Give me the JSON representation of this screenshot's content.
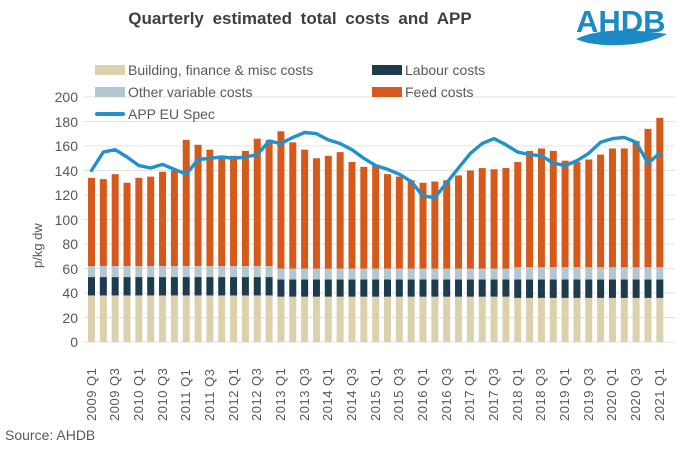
{
  "title": "Quarterly estimated total costs and APP",
  "logo_text": "AHDB",
  "source": "Source: AHDB",
  "colors": {
    "building": "#dbd2ad",
    "labour": "#1d3d4e",
    "other_variable": "#b3c7d1",
    "feed": "#d4591a",
    "app_line": "#2191ce",
    "logo_blue": "#1b8ac6",
    "gridline": "#e3e3e3",
    "axis_text": "#595959",
    "title_text": "#3f3f3f"
  },
  "legend": {
    "items": [
      {
        "label": "Building, finance & misc costs",
        "color": "#dbd2ad",
        "type": "swatch"
      },
      {
        "label": "Labour costs",
        "color": "#1d3d4e",
        "type": "swatch"
      },
      {
        "label": "Other variable costs",
        "color": "#b3c7d1",
        "type": "swatch"
      },
      {
        "label": "Feed costs",
        "color": "#d4591a",
        "type": "swatch"
      },
      {
        "label": "APP EU Spec",
        "color": "#2191ce",
        "type": "line"
      }
    ]
  },
  "chart_data": {
    "type": "bar",
    "subtype": "stacked-bar-with-line",
    "title": "Quarterly estimated total costs and APP",
    "xlabel": "",
    "ylabel": "p/kg dw",
    "ylim": [
      0,
      200
    ],
    "ytick_step": 20,
    "grid": "horizontal",
    "legend_position": "top",
    "x_tick_every": 2,
    "categories": [
      "2009 Q1",
      "2009 Q2",
      "2009 Q3",
      "2009 Q4",
      "2010 Q1",
      "2010 Q2",
      "2010 Q3",
      "2010 Q4",
      "2011 Q1",
      "2011 Q2",
      "2011 Q3",
      "2011 Q4",
      "2012 Q1",
      "2012 Q2",
      "2012 Q3",
      "2012 Q4",
      "2013 Q1",
      "2013 Q2",
      "2013 Q3",
      "2013 Q4",
      "2014 Q1",
      "2014 Q2",
      "2014 Q3",
      "2014 Q4",
      "2015 Q1",
      "2015 Q2",
      "2015 Q3",
      "2015 Q4",
      "2016 Q1",
      "2016 Q2",
      "2016 Q3",
      "2016 Q4",
      "2017 Q1",
      "2017 Q2",
      "2017 Q3",
      "2017 Q4",
      "2018 Q1",
      "2018 Q2",
      "2018 Q3",
      "2018 Q4",
      "2019 Q1",
      "2019 Q2",
      "2019 Q3",
      "2019 Q4",
      "2020 Q1",
      "2020 Q2",
      "2020 Q3",
      "2020 Q4",
      "2021 Q1"
    ],
    "series": [
      {
        "name": "Building, finance & misc costs",
        "color": "#dbd2ad",
        "values": [
          38,
          38,
          38,
          38,
          38,
          38,
          38,
          38,
          38,
          38,
          38,
          38,
          38,
          38,
          38,
          38,
          37,
          37,
          37,
          37,
          37,
          37,
          37,
          37,
          37,
          37,
          37,
          37,
          37,
          37,
          37,
          37,
          37,
          37,
          37,
          37,
          36,
          36,
          36,
          36,
          36,
          36,
          36,
          36,
          36,
          36,
          36,
          36,
          36
        ]
      },
      {
        "name": "Labour costs",
        "color": "#1d3d4e",
        "values": [
          15,
          15,
          15,
          15,
          15,
          15,
          15,
          15,
          15,
          15,
          15,
          15,
          15,
          15,
          15,
          15,
          14,
          14,
          14,
          14,
          14,
          14,
          14,
          14,
          14,
          14,
          14,
          14,
          14,
          14,
          14,
          14,
          14,
          14,
          14,
          14,
          15,
          15,
          15,
          15,
          15,
          15,
          15,
          15,
          15,
          15,
          15,
          15,
          15
        ]
      },
      {
        "name": "Other variable costs",
        "color": "#b3c7d1",
        "values": [
          9,
          9,
          9,
          9,
          9,
          9,
          9,
          9,
          9,
          9,
          9,
          9,
          9,
          9,
          9,
          9,
          9,
          9,
          9,
          9,
          9,
          9,
          9,
          9,
          9,
          9,
          9,
          9,
          9,
          9,
          9,
          9,
          9,
          9,
          9,
          9,
          10,
          10,
          10,
          10,
          10,
          10,
          10,
          10,
          10,
          10,
          10,
          10,
          10
        ]
      },
      {
        "name": "Feed costs",
        "color": "#d4591a",
        "values": [
          72,
          71,
          75,
          68,
          72,
          73,
          77,
          78,
          103,
          99,
          95,
          89,
          90,
          94,
          104,
          103,
          112,
          103,
          97,
          90,
          92,
          95,
          87,
          83,
          84,
          77,
          75,
          72,
          70,
          71,
          72,
          76,
          80,
          82,
          81,
          82,
          86,
          95,
          97,
          95,
          87,
          86,
          88,
          92,
          97,
          97,
          103,
          113,
          122
        ]
      }
    ],
    "line_series": {
      "name": "APP EU Spec",
      "color": "#2191ce",
      "values": [
        140,
        155,
        157,
        151,
        144,
        142,
        145,
        141,
        137,
        149,
        150,
        151,
        150,
        151,
        153,
        164,
        162,
        167,
        171,
        170,
        165,
        162,
        157,
        150,
        144,
        141,
        137,
        131,
        119,
        118,
        130,
        142,
        154,
        162,
        166,
        161,
        155,
        153,
        152,
        146,
        144,
        148,
        154,
        163,
        166,
        167,
        163,
        146,
        154
      ]
    },
    "totals_note": "stacked bar totals = sum of four cost series (p/kg dw)"
  },
  "yaxis_label": "p/kg dw"
}
